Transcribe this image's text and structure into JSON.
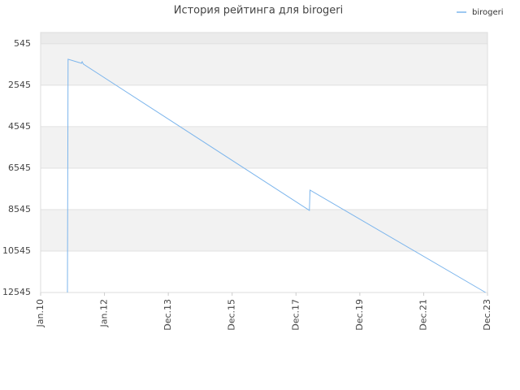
{
  "chart_data": {
    "type": "line",
    "title": "История рейтинга для birogeri",
    "x_unit_note": null,
    "series": [
      {
        "name": "birogeri",
        "color": "#7cb5ec",
        "x": [
          0.42,
          0.43,
          0.64,
          0.65,
          0.67,
          4.21,
          4.22,
          6.97
        ],
        "values": [
          12545,
          1290,
          1486,
          1408,
          1525,
          8584,
          7604,
          12545
        ]
      }
    ],
    "xlim": [
      0,
      7
    ],
    "xticks": [
      {
        "value": 0,
        "label": "Jan.10"
      },
      {
        "value": 1,
        "label": "Jan.12"
      },
      {
        "value": 2,
        "label": "Dec.13"
      },
      {
        "value": 3,
        "label": "Dec.15"
      },
      {
        "value": 4,
        "label": "Dec.17"
      },
      {
        "value": 5,
        "label": "Dec.19"
      },
      {
        "value": 6,
        "label": "Dec.21"
      },
      {
        "value": 7,
        "label": "Dec.23"
      }
    ],
    "ylim": [
      12545,
      0
    ],
    "yticks": [
      545,
      2545,
      4545,
      6545,
      8545,
      10545,
      12545
    ],
    "legend": "top-right"
  }
}
